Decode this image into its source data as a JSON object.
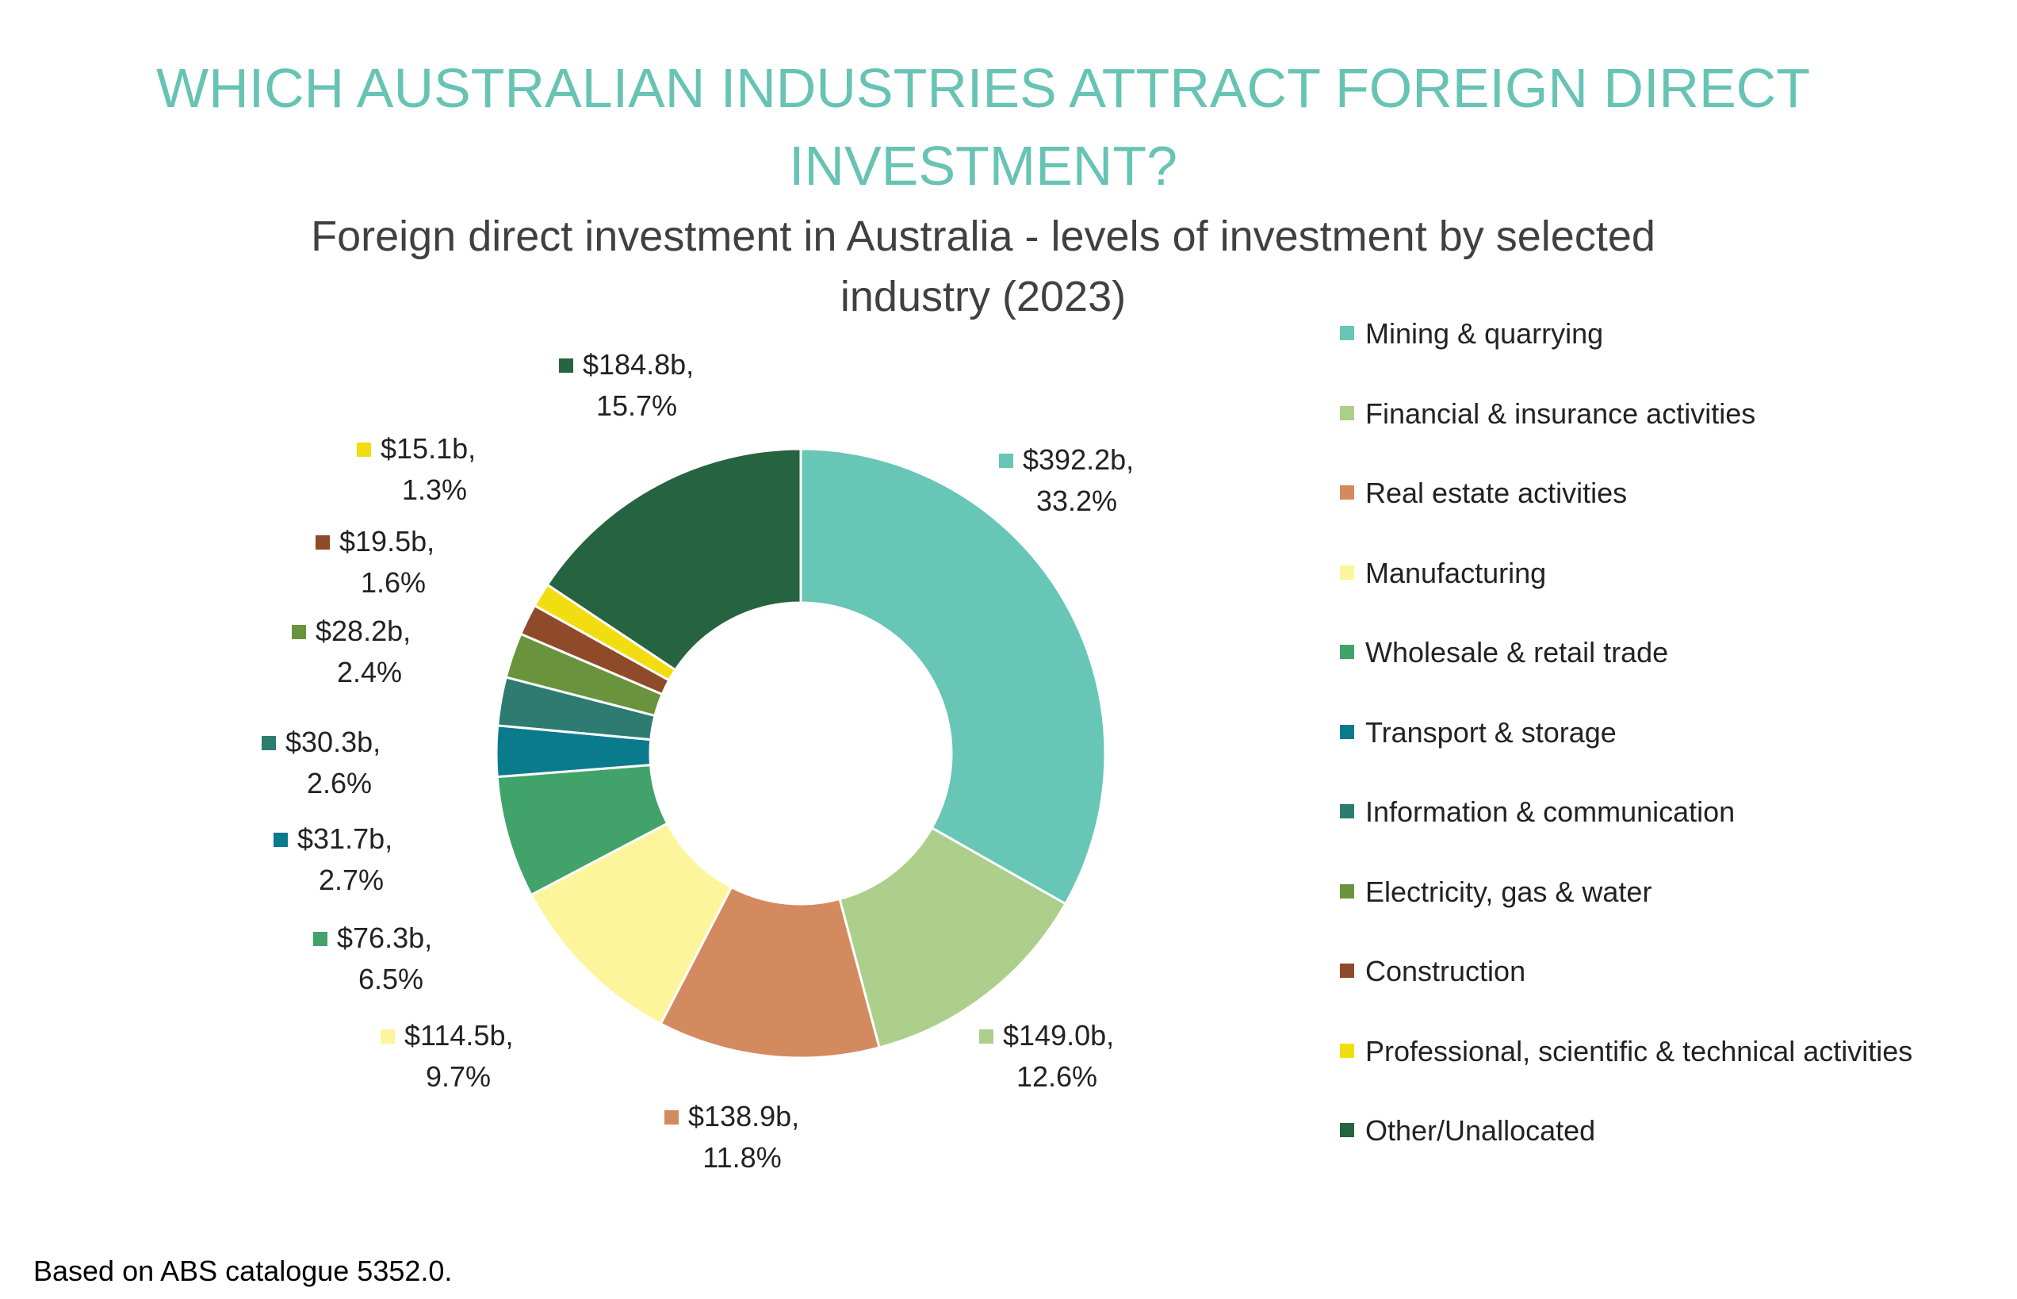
{
  "header": {
    "title": "WHICH AUSTRALIAN INDUSTRIES ATTRACT FOREIGN DIRECT INVESTMENT?",
    "subtitle": "Foreign direct investment in Australia - levels of investment by selected industry (2023)"
  },
  "footnote": "Based on ABS catalogue 5352.0.",
  "colors": {
    "title": "#67c3b3",
    "subtitle": "#404040",
    "slice_border": "#ffffff"
  },
  "chart_data": {
    "type": "pie",
    "variant": "donut",
    "title": "Foreign direct investment in Australia - levels of investment by selected industry (2023)",
    "legend_position": "right",
    "slices": [
      {
        "name": "Mining & quarrying",
        "value": 392.2,
        "percent": 33.2,
        "value_label": "$392.2b,",
        "percent_label": "33.2%",
        "color": "#67c6b5"
      },
      {
        "name": "Financial & insurance activities",
        "value": 149.0,
        "percent": 12.6,
        "value_label": "$149.0b,",
        "percent_label": "12.6%",
        "color": "#accf8b"
      },
      {
        "name": "Real estate activities",
        "value": 138.9,
        "percent": 11.8,
        "value_label": "$138.9b,",
        "percent_label": "11.8%",
        "color": "#d48a5f"
      },
      {
        "name": "Manufacturing",
        "value": 114.5,
        "percent": 9.7,
        "value_label": "$114.5b,",
        "percent_label": "9.7%",
        "color": "#fdf59b"
      },
      {
        "name": "Wholesale & retail trade",
        "value": 76.3,
        "percent": 6.5,
        "value_label": "$76.3b,",
        "percent_label": "6.5%",
        "color": "#41a36a"
      },
      {
        "name": "Transport & storage",
        "value": 31.7,
        "percent": 2.7,
        "value_label": "$31.7b,",
        "percent_label": "2.7%",
        "color": "#0a7b8c"
      },
      {
        "name": "Information & communication",
        "value": 30.3,
        "percent": 2.6,
        "value_label": "$30.3b,",
        "percent_label": "2.6%",
        "color": "#2e7c71"
      },
      {
        "name": "Electricity, gas & water",
        "value": 28.2,
        "percent": 2.4,
        "value_label": "$28.2b,",
        "percent_label": "2.4%",
        "color": "#69943d"
      },
      {
        "name": "Construction",
        "value": 19.5,
        "percent": 1.6,
        "value_label": "$19.5b,",
        "percent_label": "1.6%",
        "color": "#8f4a2a"
      },
      {
        "name": "Professional, scientific & technical activities",
        "value": 15.1,
        "percent": 1.3,
        "value_label": "$15.1b,",
        "percent_label": "1.3%",
        "color": "#f2de10"
      },
      {
        "name": "Other/Unallocated",
        "value": 184.8,
        "percent": 15.7,
        "value_label": "$184.8b,",
        "percent_label": "15.7%",
        "color": "#266341"
      }
    ]
  }
}
